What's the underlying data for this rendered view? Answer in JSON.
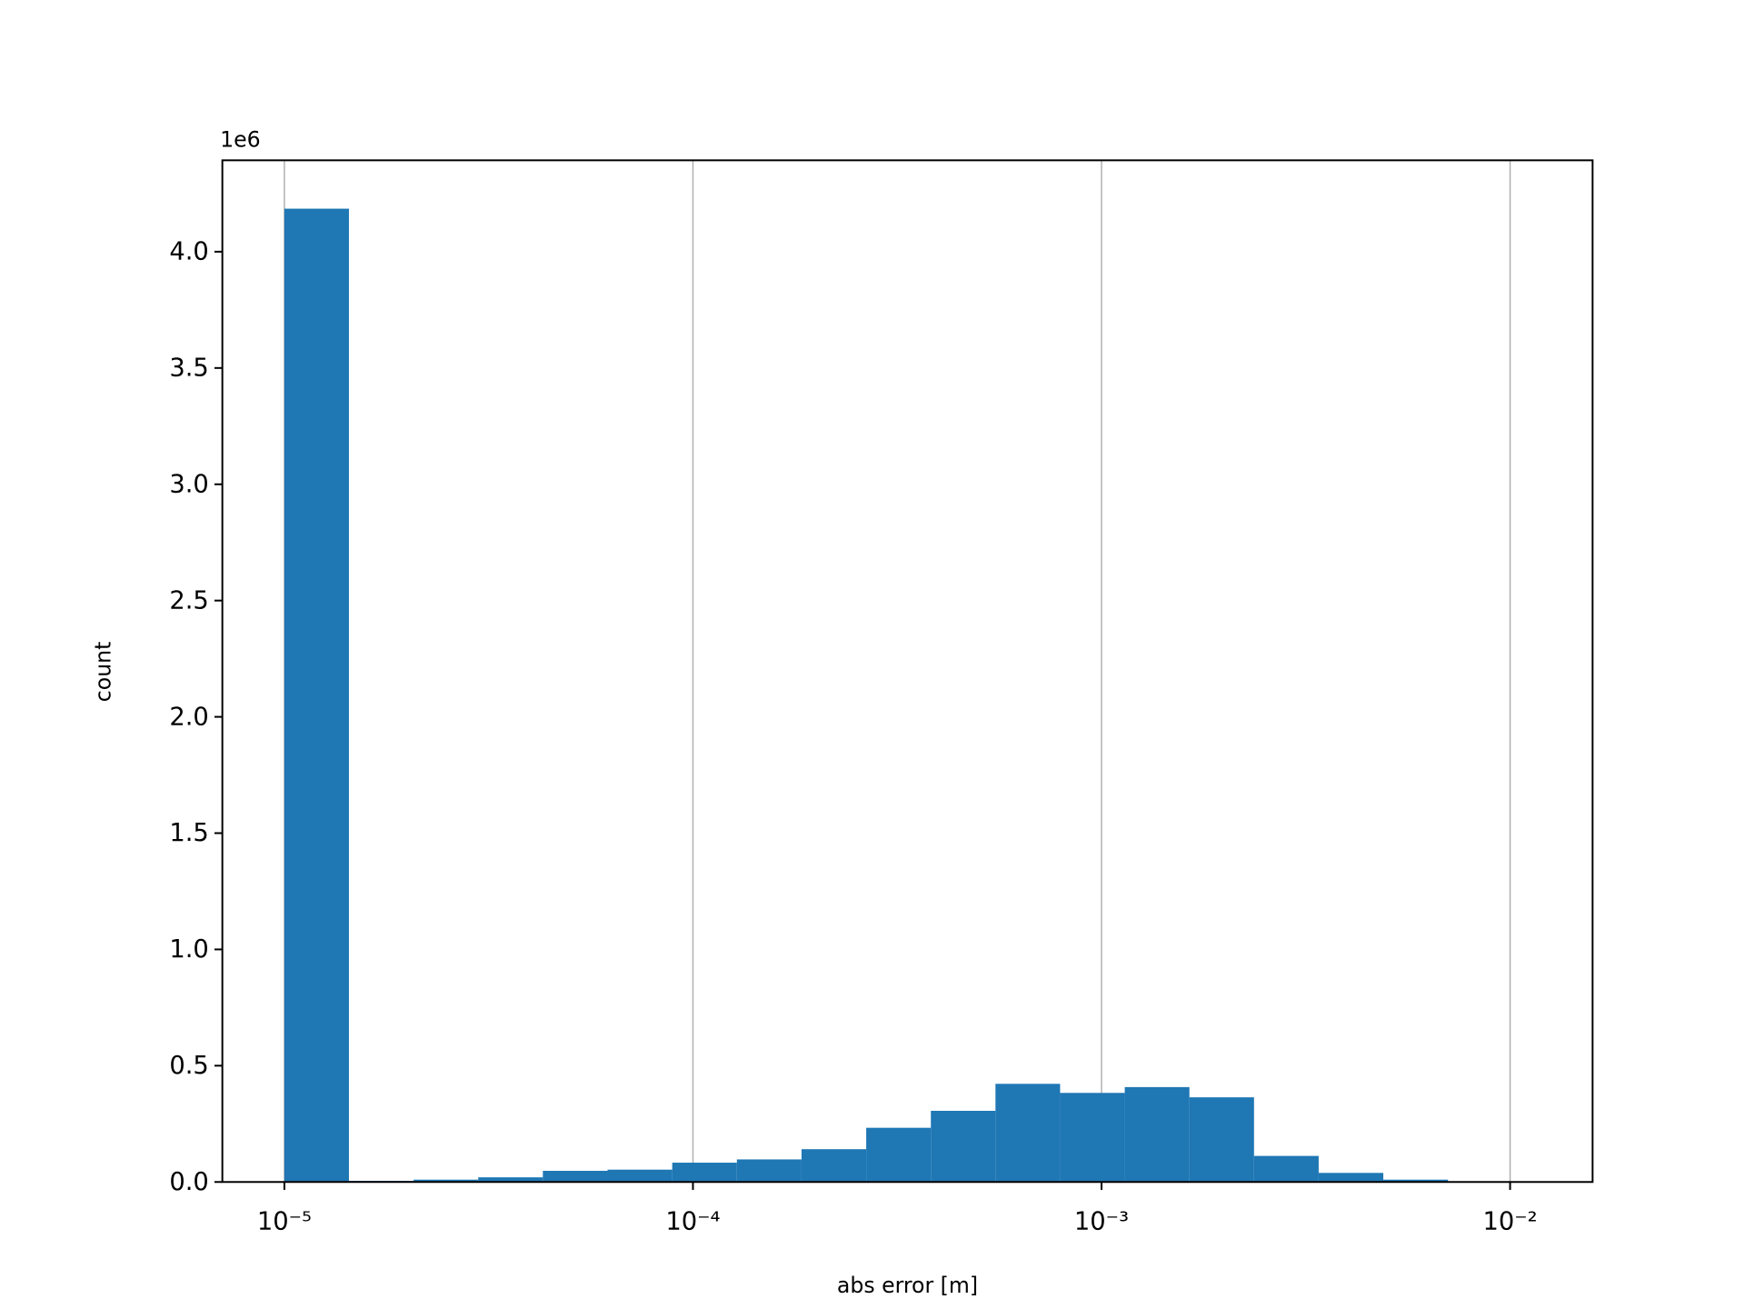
{
  "chart_data": {
    "type": "histogram",
    "xlabel": "abs error [m]",
    "ylabel": "count",
    "y_offset_label": "1e6",
    "bins": [
      1e-05,
      1.439e-05,
      2.072e-05,
      2.982e-05,
      4.292e-05,
      6.18e-05,
      8.898e-05,
      0.0001281,
      0.0001844,
      0.0002655,
      0.0003822,
      0.0005501,
      0.0007918,
      0.00114,
      0.001641,
      0.002362,
      0.0034,
      0.004894,
      0.007047
    ],
    "counts": [
      4185000,
      5000,
      10000,
      20000,
      48000,
      53000,
      83000,
      97000,
      141000,
      233000,
      306000,
      422000,
      383000,
      408000,
      364000,
      112000,
      39000,
      10000
    ],
    "color": "#1f77b4",
    "xscale": "log",
    "xlim": [
      7.05e-06,
      0.01592
    ],
    "xticks": [
      {
        "value": 1e-05,
        "label": "10⁻⁵"
      },
      {
        "value": 0.0001,
        "label": "10⁻⁴"
      },
      {
        "value": 0.001,
        "label": "10⁻³"
      },
      {
        "value": 0.01,
        "label": "10⁻²"
      }
    ],
    "ylim": [
      0,
      4393000
    ],
    "yticks": [
      {
        "value": 0,
        "label": "0.0"
      },
      {
        "value": 500000,
        "label": "0.5"
      },
      {
        "value": 1000000,
        "label": "1.0"
      },
      {
        "value": 1500000,
        "label": "1.5"
      },
      {
        "value": 2000000,
        "label": "2.0"
      },
      {
        "value": 2500000,
        "label": "2.5"
      },
      {
        "value": 3000000,
        "label": "3.0"
      },
      {
        "value": 3500000,
        "label": "3.5"
      },
      {
        "value": 4000000,
        "label": "4.0"
      }
    ],
    "grid": "x"
  }
}
